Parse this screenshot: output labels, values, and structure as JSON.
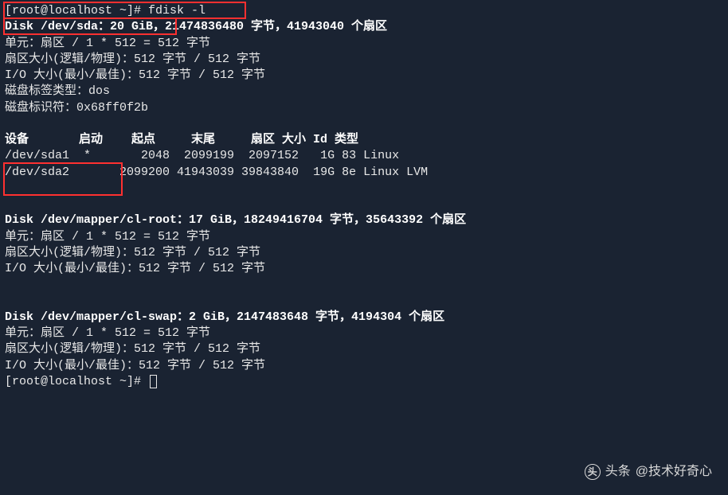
{
  "prompt": {
    "user_host": "[root@localhost ~]# ",
    "command": "fdisk -l"
  },
  "disk1": {
    "header": "Disk /dev/sda：20 GiB，21474836480 字节，41943040 个扇区",
    "units": "单元：扇区 / 1 * 512 = 512 字节",
    "sector": "扇区大小(逻辑/物理)：512 字节 / 512 字节",
    "io": "I/O 大小(最小/最佳)：512 字节 / 512 字节",
    "label_type": "磁盘标签类型：dos",
    "identifier": "磁盘标识符：0x68ff0f2b"
  },
  "table": {
    "header": "设备       启动    起点     末尾     扇区 大小 Id 类型",
    "row1": "/dev/sda1  *       2048  2099199  2097152   1G 83 Linux",
    "row2": "/dev/sda2       2099200 41943039 39843840  19G 8e Linux LVM"
  },
  "disk2": {
    "header": "Disk /dev/mapper/cl-root：17 GiB，18249416704 字节，35643392 个扇区",
    "units": "单元：扇区 / 1 * 512 = 512 字节",
    "sector": "扇区大小(逻辑/物理)：512 字节 / 512 字节",
    "io": "I/O 大小(最小/最佳)：512 字节 / 512 字节"
  },
  "disk3": {
    "header": "Disk /dev/mapper/cl-swap：2 GiB，2147483648 字节，4194304 个扇区",
    "units": "单元：扇区 / 1 * 512 = 512 字节",
    "sector": "扇区大小(逻辑/物理)：512 字节 / 512 字节",
    "io": "I/O 大小(最小/最佳)：512 字节 / 512 字节"
  },
  "prompt2": "[root@localhost ~]# ",
  "watermark": {
    "prefix": "头条",
    "text": "@技术好奇心"
  }
}
